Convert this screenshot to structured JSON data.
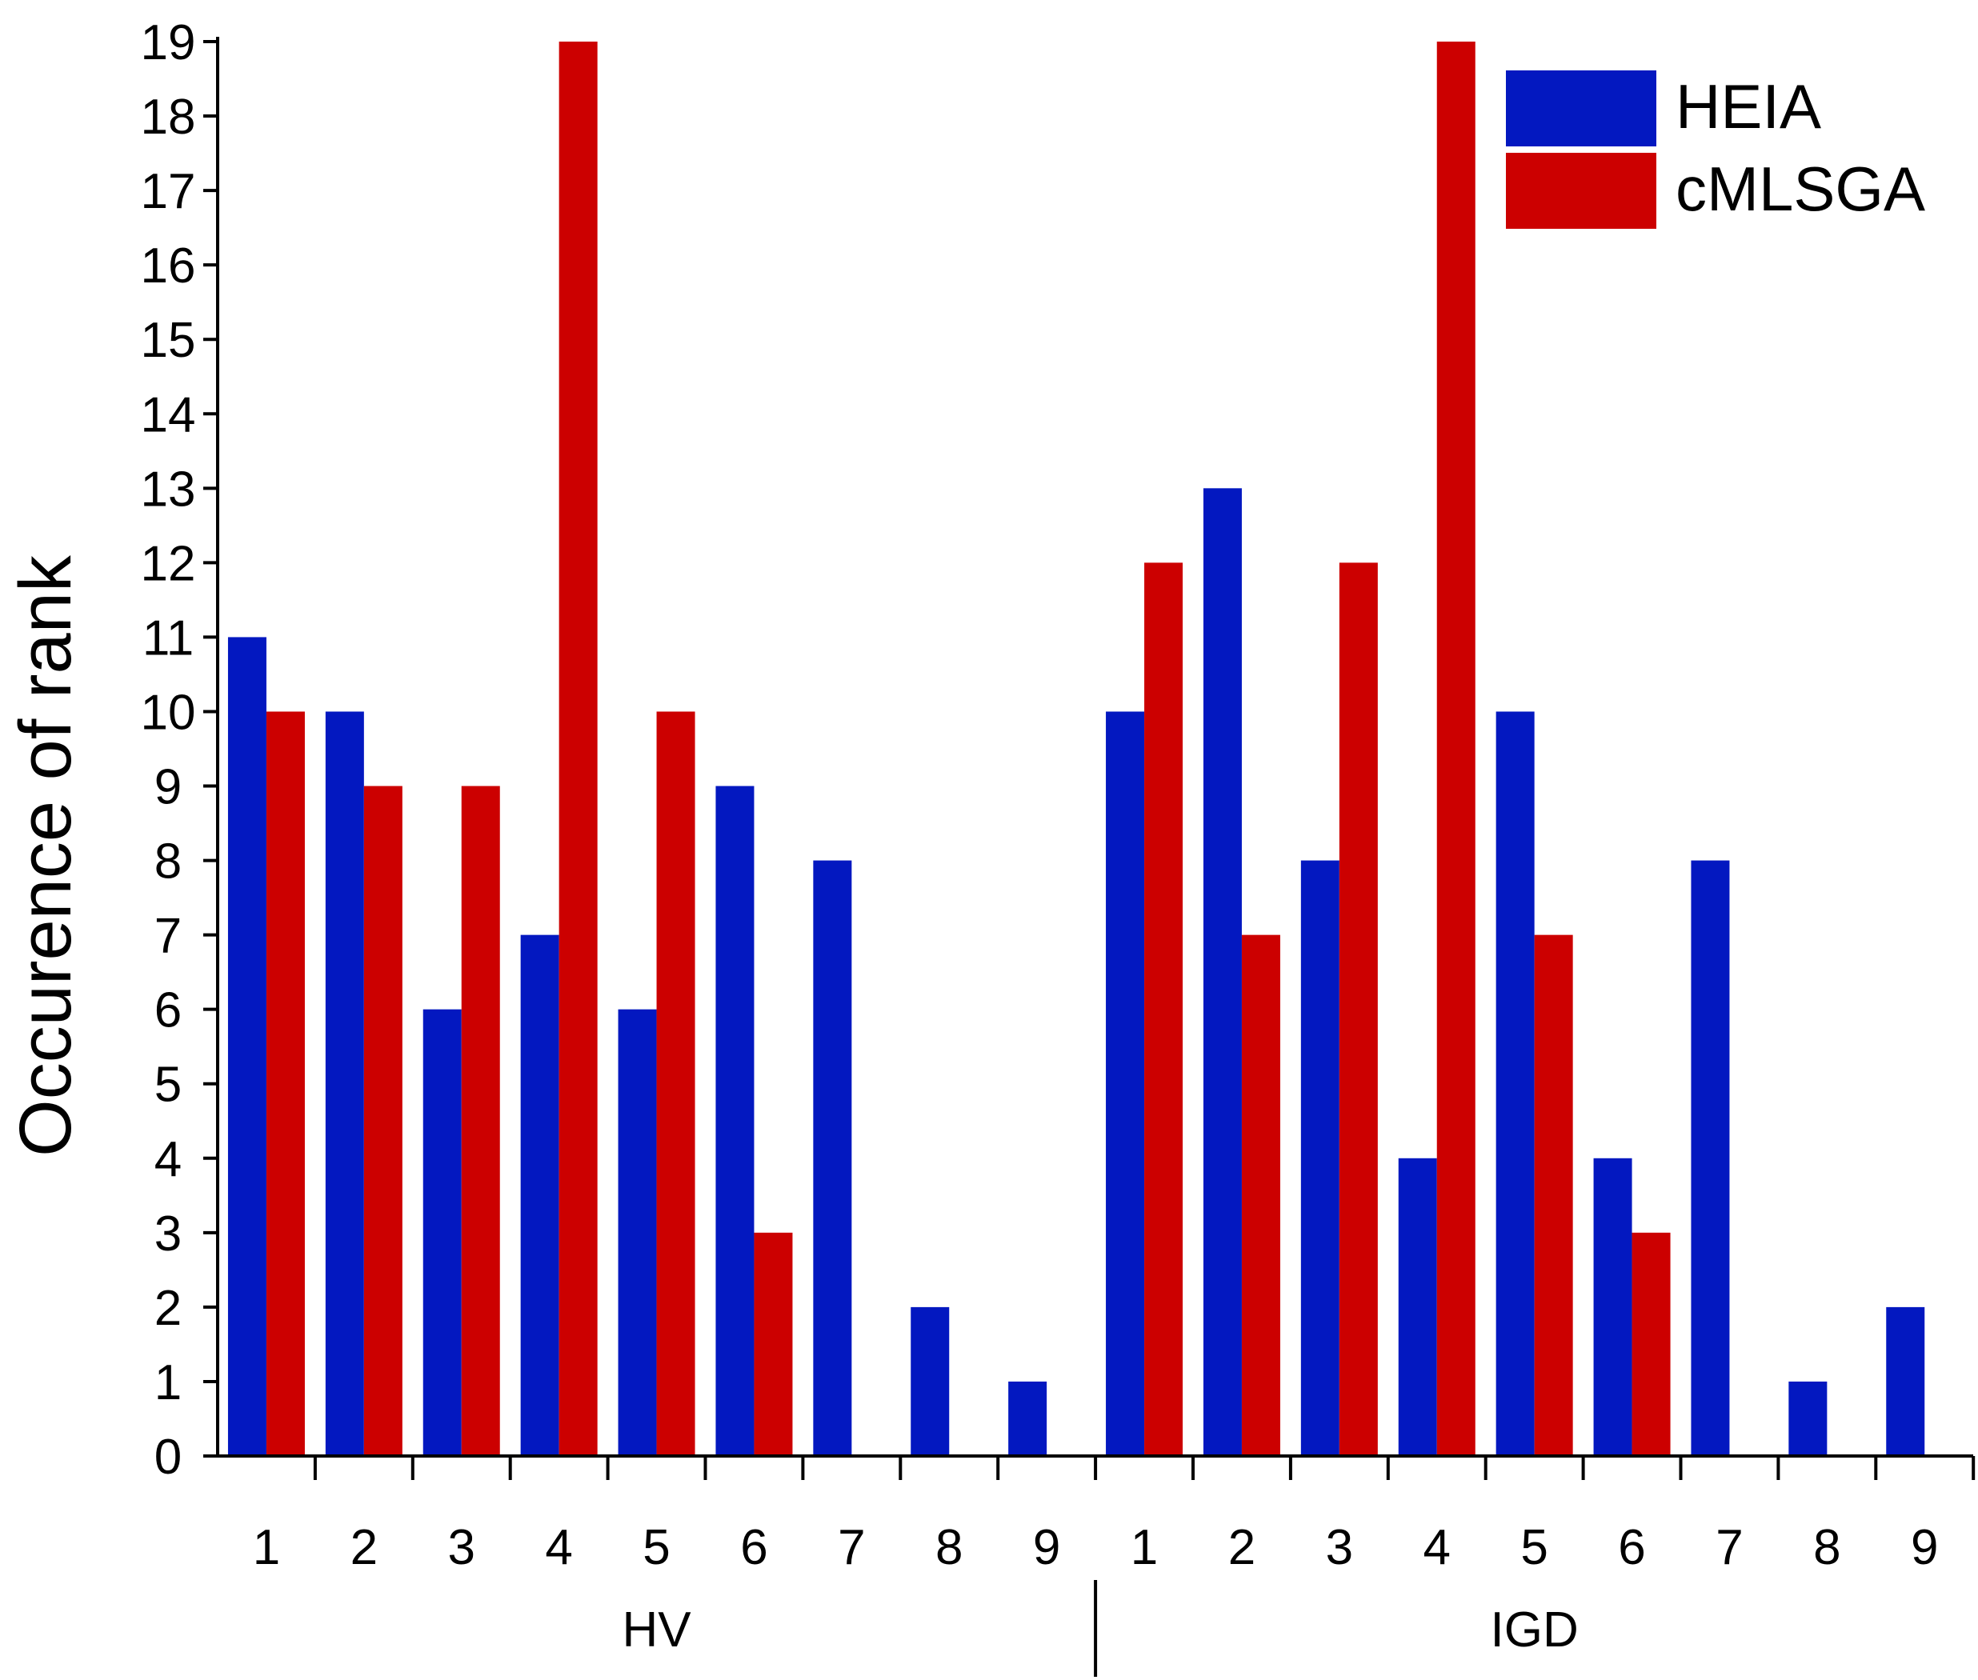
{
  "chart_data": {
    "type": "bar",
    "title": "",
    "xlabel": "",
    "ylabel": "Occurence of rank",
    "ylim": [
      0,
      19
    ],
    "yticks": [
      0,
      1,
      2,
      3,
      4,
      5,
      6,
      7,
      8,
      9,
      10,
      11,
      12,
      13,
      14,
      15,
      16,
      17,
      18,
      19
    ],
    "groups": [
      {
        "label": "HV",
        "categories": [
          "1",
          "2",
          "3",
          "4",
          "5",
          "6",
          "7",
          "8",
          "9"
        ],
        "series": [
          {
            "name": "HEIA",
            "values": [
              11,
              10,
              6,
              7,
              6,
              9,
              8,
              2,
              1
            ]
          },
          {
            "name": "cMLSGA",
            "values": [
              10,
              9,
              9,
              19,
              10,
              3,
              0,
              0,
              0
            ]
          }
        ]
      },
      {
        "label": "IGD",
        "categories": [
          "1",
          "2",
          "3",
          "4",
          "5",
          "6",
          "7",
          "8",
          "9"
        ],
        "series": [
          {
            "name": "HEIA",
            "values": [
              10,
              13,
              8,
              4,
              10,
              4,
              8,
              1,
              2
            ]
          },
          {
            "name": "cMLSGA",
            "values": [
              12,
              7,
              12,
              19,
              7,
              3,
              0,
              0,
              0
            ]
          }
        ]
      }
    ],
    "legend": {
      "position": "top-right",
      "entries": [
        {
          "name": "HEIA",
          "color": "#0318C0"
        },
        {
          "name": "cMLSGA",
          "color": "#CC0000"
        }
      ]
    },
    "grid": false
  }
}
